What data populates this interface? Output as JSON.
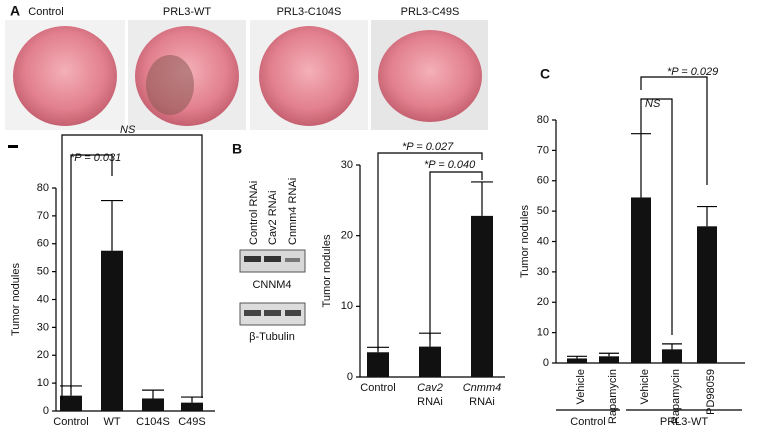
{
  "panel_a": {
    "letter": "A",
    "photo_labels": [
      "Control",
      "PRL3-WT",
      "PRL3-C104S",
      "PRL3-C49S"
    ]
  },
  "panel_b": {
    "letter": "B",
    "blot_lanes": [
      "Control RNAi",
      "Cav2 RNAi",
      "Cnmm4 RNAi"
    ],
    "blot_rows": [
      "CNNM4",
      "β-Tubulin"
    ]
  },
  "panel_c": {
    "letter": "C"
  },
  "chart_data": [
    {
      "type": "bar",
      "ylabel": "Tumor nodules",
      "categories": [
        [
          "Control"
        ],
        [
          "WT"
        ],
        [
          "C104S"
        ],
        [
          "C49S"
        ]
      ],
      "values": [
        5.5,
        57.5,
        4.5,
        3
      ],
      "errors": [
        3.5,
        18,
        3,
        2
      ],
      "color": "#111111",
      "ylim": [
        0,
        80
      ],
      "yticks": [
        0,
        10,
        20,
        30,
        40,
        50,
        60,
        70,
        80
      ],
      "annotations": [
        "*P = 0.031",
        "NS"
      ]
    },
    {
      "type": "bar",
      "ylabel": "Tumor nodules",
      "categories": [
        [
          "Control"
        ],
        [
          "Cav2",
          "RNAi"
        ],
        [
          "Cnmm4",
          "RNAi"
        ]
      ],
      "values": [
        3.5,
        4.3,
        22.8
      ],
      "errors": [
        0.7,
        1.9,
        4.8
      ],
      "color": "#111111",
      "ylim": [
        0,
        30
      ],
      "yticks": [
        0,
        10,
        20,
        30
      ],
      "annotations": [
        "*P = 0.027",
        "*P = 0.040"
      ]
    },
    {
      "type": "bar",
      "ylabel": "Tumor nodules",
      "categories": [
        [
          "Vehicle"
        ],
        [
          "Rapamycin"
        ],
        [
          "Vehicle"
        ],
        [
          "Rapamycin"
        ],
        [
          "PD98059"
        ]
      ],
      "values": [
        1.5,
        2.2,
        54.5,
        4.5,
        45
      ],
      "errors": [
        0.7,
        1,
        21,
        1.8,
        6.5
      ],
      "color": "#111111",
      "ylim": [
        0,
        80
      ],
      "yticks": [
        0,
        10,
        20,
        30,
        40,
        50,
        60,
        70,
        80
      ],
      "groups": [
        "Control",
        "PRL3-WT"
      ],
      "annotations": [
        "*P = 0.029",
        "NS"
      ]
    }
  ]
}
